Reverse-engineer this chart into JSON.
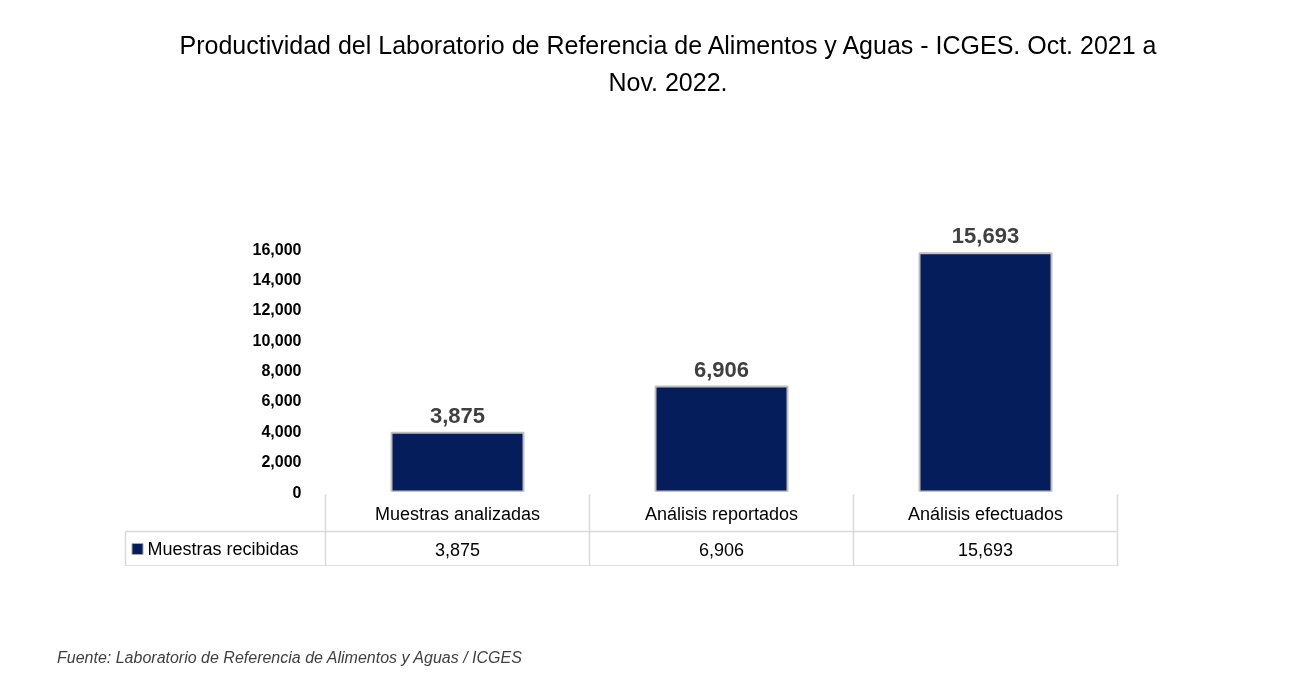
{
  "chart_data": {
    "type": "bar",
    "title": "Productividad del Laboratorio de Referencia de Alimentos y Aguas - ICGES. Oct. 2021 a Nov. 2022.",
    "categories": [
      "Muestras analizadas",
      "Análisis reportados",
      "Análisis efectuados"
    ],
    "series": [
      {
        "name": "Muestras recibidas",
        "color": "#061d5c",
        "values": [
          3875,
          6906,
          15693
        ],
        "value_labels": [
          "3,875",
          "6,906",
          "15,693"
        ]
      }
    ],
    "ylim": [
      0,
      16000
    ],
    "yticks": [
      0,
      {
        "value": 2000,
        "label": "2,000"
      },
      {
        "value": 4000,
        "label": "4,000"
      },
      {
        "value": 6000,
        "label": "6,000"
      },
      {
        "value": 8000,
        "label": "8,000"
      },
      {
        "value": 10000,
        "label": "10,000"
      },
      {
        "value": 12000,
        "label": "12,000"
      },
      {
        "value": 14000,
        "label": "14,000"
      },
      {
        "value": 16000,
        "label": "16,000"
      }
    ],
    "legend": "bottom",
    "annotations": [
      "Fuente: Laboratorio de Referencia de Alimentos y Aguas / ICGES"
    ]
  }
}
